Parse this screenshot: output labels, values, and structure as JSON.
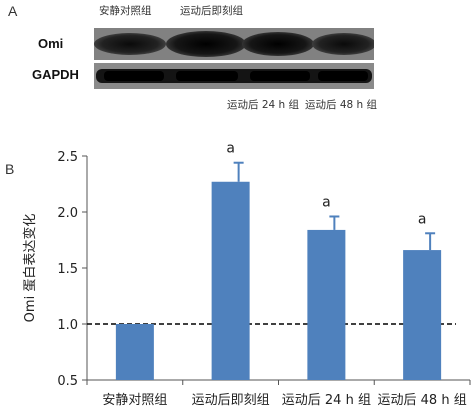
{
  "panel_a": {
    "letter": "A",
    "top_lanes": [
      "安静对照组",
      "运动后即刻组"
    ],
    "bottom_lanes": [
      "运动后 24 h 组",
      "运动后 48 h 组"
    ],
    "rows": [
      "Omi",
      "GAPDH"
    ]
  },
  "panel_b": {
    "letter": "B"
  },
  "chart_data": {
    "type": "bar",
    "categories": [
      "安静对照组",
      "运动后即刻组",
      "运动后 24 h 组",
      "运动后 48 h 组"
    ],
    "values": [
      1.0,
      2.27,
      1.84,
      1.66
    ],
    "errors": [
      0,
      0.17,
      0.12,
      0.15
    ],
    "annotations": [
      "",
      "a",
      "a",
      "a"
    ],
    "ylabel": "Omi 蛋白表达变化",
    "ylim": [
      0.5,
      2.5
    ],
    "yticks": [
      "0.5",
      "1.0",
      "1.5",
      "2.0",
      "2.5"
    ],
    "reference_line": 1.0,
    "bar_color": "#4f81bd"
  }
}
